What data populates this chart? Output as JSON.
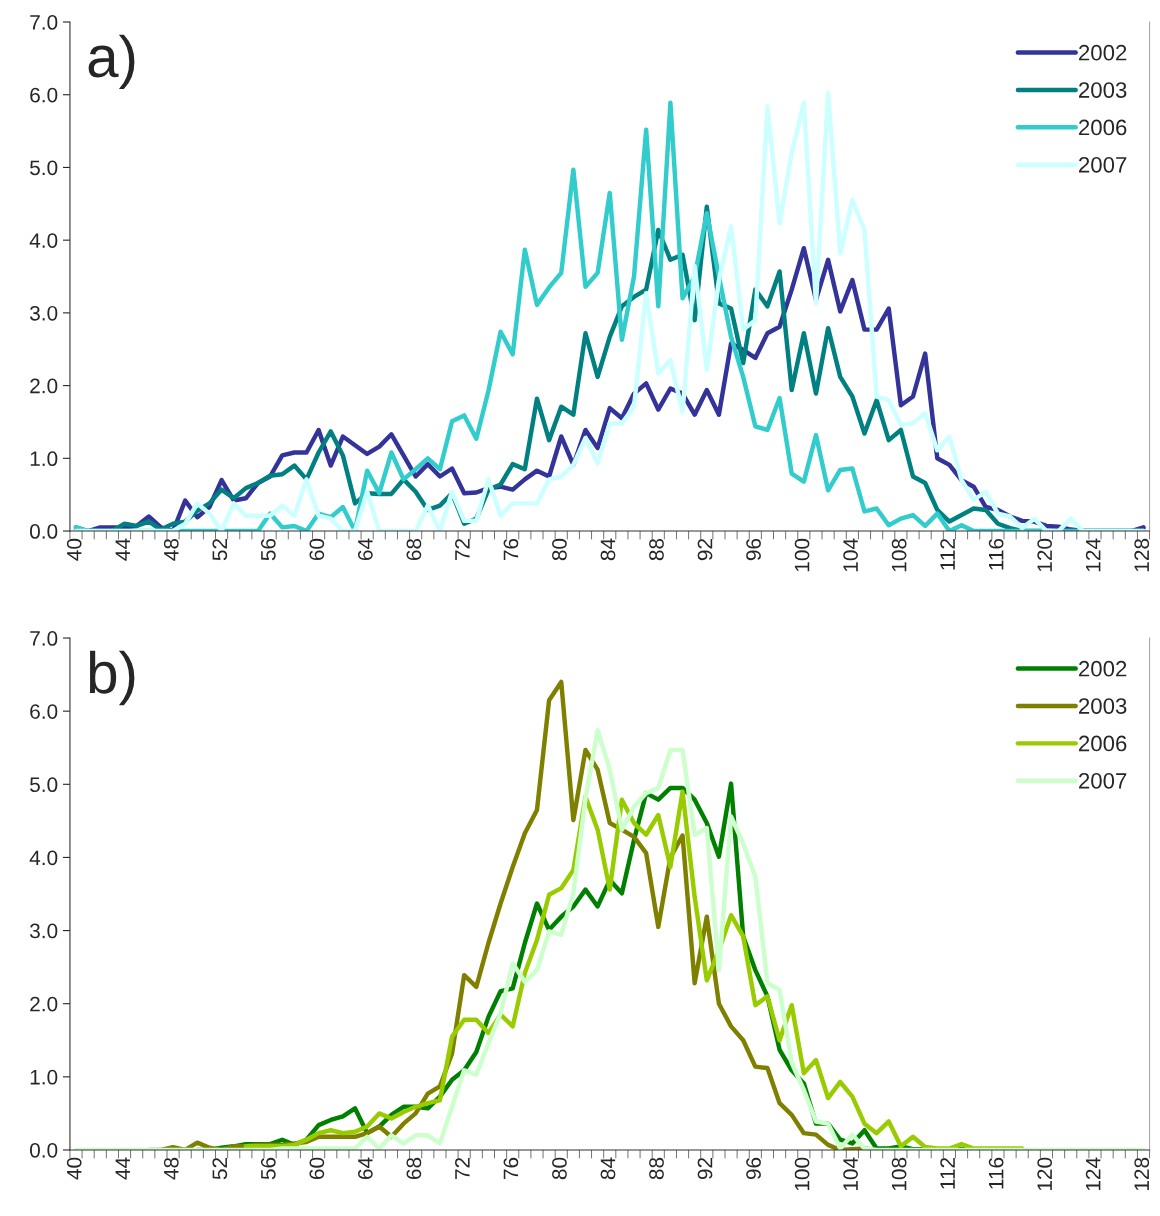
{
  "chart_data": [
    {
      "type": "line",
      "title": "a)",
      "categories": [
        "40",
        null,
        null,
        null,
        "44",
        null,
        null,
        null,
        "48",
        null,
        null,
        null,
        "52",
        null,
        null,
        null,
        "56",
        null,
        null,
        null,
        "60",
        null,
        null,
        null,
        "64",
        null,
        null,
        null,
        "68",
        null,
        null,
        null,
        "72",
        null,
        null,
        null,
        "76",
        null,
        null,
        null,
        "80",
        null,
        null,
        null,
        "84",
        null,
        null,
        null,
        "88",
        null,
        null,
        null,
        "92",
        null,
        null,
        null,
        "96",
        null,
        null,
        null,
        "100",
        null,
        null,
        null,
        "104",
        null,
        null,
        null,
        "108",
        null,
        null,
        null,
        "112",
        null,
        null,
        null,
        "116",
        null,
        null,
        null,
        "120",
        null,
        null,
        null,
        "124",
        null,
        null,
        null,
        "128"
      ],
      "series": [
        {
          "name": "2002",
          "color": "#333399",
          "values": [
            0.02,
            0.0,
            0.05,
            0.05,
            0.05,
            0.07,
            0.2,
            0.05,
            0.0,
            0.42,
            0.19,
            0.33,
            0.7,
            0.42,
            0.45,
            0.66,
            0.75,
            1.04,
            1.08,
            1.08,
            1.39,
            0.9,
            1.3,
            1.18,
            1.06,
            1.16,
            1.33,
            1.04,
            0.75,
            0.92,
            0.75,
            0.86,
            0.52,
            0.53,
            0.59,
            0.61,
            0.57,
            0.71,
            0.83,
            0.75,
            1.3,
            0.91,
            1.39,
            1.14,
            1.69,
            1.55,
            1.89,
            2.03,
            1.67,
            1.96,
            1.89,
            1.6,
            1.94,
            1.6,
            2.58,
            2.49,
            2.38,
            2.72,
            2.81,
            3.32,
            3.89,
            3.18,
            3.73,
            3.02,
            3.45,
            2.77,
            2.77,
            3.06,
            1.73,
            1.85,
            2.44,
            1.0,
            0.91,
            0.7,
            0.61,
            0.33,
            0.29,
            0.2,
            0.14,
            0.13,
            0.07,
            0.06,
            0.02,
            0,
            0,
            0,
            0,
            0,
            0.05
          ]
        },
        {
          "name": "2003",
          "color": "#008080",
          "values": [
            0.05,
            0,
            0,
            0,
            0.1,
            0.07,
            0.13,
            0.02,
            0.1,
            0.13,
            0.28,
            0.38,
            0.57,
            0.45,
            0.59,
            0.66,
            0.76,
            0.78,
            0.9,
            0.71,
            1.08,
            1.37,
            1.04,
            0.38,
            0.52,
            0.51,
            0.51,
            0.71,
            0.54,
            0.29,
            0.35,
            0.52,
            0.1,
            0.17,
            0.57,
            0.64,
            0.92,
            0.85,
            1.82,
            1.25,
            1.71,
            1.6,
            2.72,
            2.12,
            2.67,
            3.09,
            3.22,
            3.32,
            4.14,
            3.73,
            3.8,
            2.9,
            4.46,
            3.13,
            3.06,
            2.31,
            3.32,
            3.09,
            3.57,
            1.94,
            2.72,
            1.89,
            2.79,
            2.12,
            1.85,
            1.34,
            1.8,
            1.25,
            1.39,
            0.75,
            0.66,
            0.29,
            0.13,
            0.22,
            0.31,
            0.29,
            0.1,
            0.04,
            0,
            0,
            0,
            0,
            0,
            0,
            0,
            0,
            0,
            0,
            0
          ]
        },
        {
          "name": "2006",
          "color": "#33cccc",
          "values": [
            0.05,
            0,
            0,
            0,
            0,
            0,
            0,
            0,
            0,
            0,
            0,
            0,
            0,
            0,
            0,
            0,
            0.24,
            0.05,
            0.07,
            0,
            0.24,
            0.19,
            0.33,
            0,
            0.83,
            0.52,
            1.08,
            0.71,
            0.85,
            1.0,
            0.85,
            1.51,
            1.59,
            1.27,
            1.93,
            2.74,
            2.43,
            3.87,
            3.11,
            3.35,
            3.55,
            4.97,
            3.36,
            3.55,
            4.65,
            2.63,
            3.5,
            5.52,
            3.09,
            5.89,
            3.2,
            3.5,
            4.37,
            3.5,
            2.67,
            2.12,
            1.44,
            1.39,
            1.83,
            0.79,
            0.68,
            1.32,
            0.56,
            0.84,
            0.86,
            0.27,
            0.31,
            0.08,
            0.17,
            0.22,
            0.07,
            0.24,
            0,
            0.08,
            0,
            0,
            0,
            0,
            0,
            0,
            0,
            0,
            0,
            0,
            0,
            0,
            0,
            0,
            0
          ]
        },
        {
          "name": "2007",
          "color": "#ccffff",
          "values": [
            0,
            0,
            0,
            0,
            0,
            0,
            0,
            0,
            0,
            0.1,
            0.38,
            0.24,
            0,
            0.38,
            0.21,
            0.21,
            0.21,
            0.35,
            0.21,
            0.71,
            0.21,
            0.17,
            0,
            0,
            0.54,
            0,
            0,
            0,
            0,
            0.35,
            0,
            0.54,
            0.14,
            0.14,
            0.71,
            0.21,
            0.38,
            0.38,
            0.38,
            0.71,
            0.75,
            0.91,
            1.28,
            0.93,
            1.48,
            1.48,
            1.71,
            3.27,
            2.17,
            2.35,
            1.64,
            3.64,
            2.22,
            3.45,
            4.19,
            2.77,
            2.9,
            5.84,
            4.23,
            5.2,
            5.89,
            3.13,
            6.02,
            3.82,
            4.55,
            4.14,
            1.85,
            1.8,
            1.46,
            1.48,
            1.62,
            1.11,
            1.3,
            0.7,
            0.43,
            0.54,
            0.24,
            0.2,
            0.04,
            0.17,
            0,
            0,
            0.17,
            0,
            0,
            0,
            0,
            0,
            0
          ]
        }
      ],
      "ylim": [
        0,
        7
      ],
      "yticks": [
        {
          "value": 0,
          "label": "0.0"
        },
        {
          "value": 1,
          "label": "1.0"
        },
        {
          "value": 2,
          "label": "2.0"
        },
        {
          "value": 3,
          "label": "3.0"
        },
        {
          "value": 4,
          "label": "4.0"
        },
        {
          "value": 5,
          "label": "5.0"
        },
        {
          "value": 6,
          "label": "6.0"
        },
        {
          "value": 7,
          "label": "7.0"
        }
      ],
      "legend": "top right"
    },
    {
      "type": "line",
      "title": "b)",
      "categories": [
        "40",
        null,
        null,
        null,
        "44",
        null,
        null,
        null,
        "48",
        null,
        null,
        null,
        "52",
        null,
        null,
        null,
        "56",
        null,
        null,
        null,
        "60",
        null,
        null,
        null,
        "64",
        null,
        null,
        null,
        "68",
        null,
        null,
        null,
        "72",
        null,
        null,
        null,
        "76",
        null,
        null,
        null,
        "80",
        null,
        null,
        null,
        "84",
        null,
        null,
        null,
        "88",
        null,
        null,
        null,
        "92",
        null,
        null,
        null,
        "96",
        null,
        null,
        null,
        "100",
        null,
        null,
        null,
        "104",
        null,
        null,
        null,
        "108",
        null,
        null,
        null,
        "112",
        null,
        null,
        null,
        "116",
        null,
        null,
        null,
        "120",
        null,
        null,
        null,
        "124",
        null,
        null,
        null,
        "128"
      ],
      "series": [
        {
          "name": "2002",
          "color": "#008000",
          "values": [
            null,
            null,
            null,
            null,
            null,
            null,
            null,
            null,
            null,
            null,
            0,
            0,
            0.03,
            0.05,
            0.08,
            0.08,
            0.08,
            0.14,
            0.07,
            0.14,
            0.34,
            0.41,
            0.46,
            0.57,
            0.23,
            0.32,
            0.48,
            0.59,
            0.59,
            0.57,
            0.73,
            0.96,
            1.09,
            1.34,
            1.82,
            2.17,
            2.21,
            2.83,
            3.37,
            3.01,
            3.19,
            3.33,
            3.56,
            3.33,
            3.69,
            3.51,
            4.24,
            4.88,
            4.79,
            4.95,
            4.95,
            4.79,
            4.47,
            4.01,
            5.01,
            2.92,
            2.46,
            2.1,
            1.37,
            1.09,
            0.91,
            0.36,
            0.36,
            0.14,
            0.09,
            0.27,
            0.02,
            0.02,
            0.05,
            0.01,
            0.01,
            0.01,
            0.01,
            0.01,
            0.01,
            null,
            null,
            null,
            null,
            null,
            null,
            null,
            null,
            null,
            null,
            null,
            null,
            null,
            null
          ]
        },
        {
          "name": "2003",
          "color": "#808000",
          "values": [
            null,
            null,
            null,
            null,
            null,
            null,
            0,
            0,
            0.04,
            0,
            0.1,
            0.03,
            0,
            0.05,
            0.05,
            0.07,
            0.07,
            0.07,
            0.09,
            0.11,
            0.18,
            0.18,
            0.18,
            0.18,
            0.23,
            0.32,
            0.18,
            0.36,
            0.5,
            0.77,
            0.87,
            1.32,
            2.39,
            2.23,
            2.83,
            3.37,
            3.87,
            4.33,
            4.65,
            6.15,
            6.4,
            4.51,
            5.47,
            5.2,
            4.47,
            4.38,
            4.28,
            4.06,
            3.05,
            4.0,
            4.3,
            2.28,
            3.19,
            2.0,
            1.69,
            1.5,
            1.14,
            1.12,
            0.64,
            0.48,
            0.23,
            0.21,
            0.07,
            0,
            0.01,
            0.02,
            0,
            null,
            null,
            null,
            null,
            null,
            null,
            null,
            null,
            null,
            null,
            null,
            null,
            null,
            null,
            null,
            null,
            null,
            null,
            null,
            null,
            null,
            null
          ]
        },
        {
          "name": "2006",
          "color": "#99cc00",
          "values": [
            null,
            null,
            null,
            null,
            null,
            null,
            null,
            null,
            null,
            null,
            null,
            null,
            null,
            null,
            0.05,
            0.05,
            0.05,
            0.05,
            0.07,
            0.14,
            0.23,
            0.27,
            0.23,
            0.25,
            0.32,
            0.5,
            0.43,
            0.52,
            0.59,
            0.64,
            0.68,
            1.55,
            1.78,
            1.78,
            1.6,
            1.85,
            1.69,
            2.42,
            2.87,
            3.49,
            3.58,
            3.83,
            4.83,
            4.38,
            3.56,
            4.79,
            4.47,
            4.31,
            4.58,
            3.87,
            4.9,
            3.46,
            2.32,
            2.73,
            3.21,
            2.92,
            1.98,
            2.1,
            1.5,
            1.98,
            1.05,
            1.23,
            0.71,
            0.93,
            0.73,
            0.36,
            0.23,
            0.39,
            0.05,
            0.18,
            0.04,
            0.02,
            0.02,
            0.08,
            0.02,
            0.02,
            0.02,
            0.02,
            0.02,
            null,
            null,
            null,
            null,
            null,
            null,
            null,
            null,
            null,
            null
          ]
        },
        {
          "name": "2007",
          "color": "#ccffcc",
          "values": [
            0,
            0,
            0,
            0,
            0,
            0,
            0,
            0,
            0,
            0,
            0,
            0,
            0,
            0,
            0,
            0,
            0,
            0.02,
            0.02,
            0.02,
            0.02,
            0.02,
            0.02,
            0.02,
            0.18,
            0.02,
            0.2,
            0.09,
            0.2,
            0.2,
            0.09,
            0.59,
            1.09,
            1.03,
            1.46,
            1.87,
            2.55,
            2.3,
            2.46,
            2.99,
            2.94,
            3.51,
            4.81,
            5.74,
            5.2,
            4.38,
            4.69,
            4.88,
            4.95,
            5.47,
            5.47,
            4.31,
            4.4,
            2.46,
            4.56,
            4.19,
            3.74,
            2.28,
            2.19,
            1.19,
            0.82,
            0.39,
            0.36,
            0.02,
            0.21,
            0.02,
            0,
            0,
            0,
            0,
            0,
            0,
            0,
            0,
            0,
            0,
            0,
            0,
            0,
            0,
            0,
            0,
            0,
            0,
            0,
            0,
            0,
            0,
            0
          ]
        }
      ],
      "ylim": [
        0,
        7
      ],
      "yticks": [
        {
          "value": 0,
          "label": "0.0"
        },
        {
          "value": 1,
          "label": "1.0"
        },
        {
          "value": 2,
          "label": "2.0"
        },
        {
          "value": 3,
          "label": "3.0"
        },
        {
          "value": 4,
          "label": "4.0"
        },
        {
          "value": 5,
          "label": "5.0"
        },
        {
          "value": 6,
          "label": "6.0"
        },
        {
          "value": 7,
          "label": "7.0"
        }
      ],
      "legend": "top right"
    }
  ]
}
